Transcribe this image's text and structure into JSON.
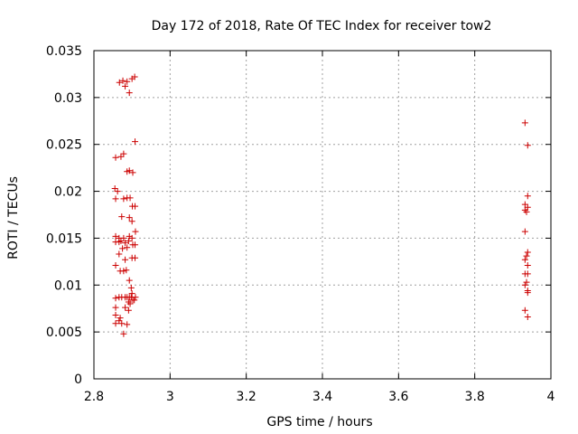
{
  "chart_data": {
    "type": "scatter",
    "title": "Day 172 of 2018, Rate Of TEC Index for receiver tow2",
    "xlabel": "GPS time / hours",
    "ylabel": "ROTI / TECUs",
    "xlim": [
      2.8,
      4.0
    ],
    "ylim": [
      0,
      0.035
    ],
    "x_ticks": [
      2.8,
      3.0,
      3.2,
      3.4,
      3.6,
      3.8,
      4.0
    ],
    "x_tick_labels": [
      "2.8",
      "3",
      "3.2",
      "3.4",
      "3.6",
      "3.8",
      "4"
    ],
    "y_ticks": [
      0,
      0.005,
      0.01,
      0.015,
      0.02,
      0.025,
      0.03,
      0.035
    ],
    "y_tick_labels": [
      "0",
      "0.005",
      "0.01",
      "0.015",
      "0.02",
      "0.025",
      "0.03",
      "0.035"
    ],
    "grid": true,
    "marker": "plus",
    "color": "#cc0000",
    "series": [
      {
        "points": [
          [
            2.867,
            0.0316
          ],
          [
            2.876,
            0.0318
          ],
          [
            2.882,
            0.0312
          ],
          [
            2.887,
            0.0317
          ],
          [
            2.893,
            0.0305
          ],
          [
            2.9,
            0.032
          ],
          [
            2.907,
            0.0322
          ],
          [
            2.908,
            0.0253
          ],
          [
            2.857,
            0.0236
          ],
          [
            2.871,
            0.0237
          ],
          [
            2.878,
            0.024
          ],
          [
            2.887,
            0.0221
          ],
          [
            2.893,
            0.0222
          ],
          [
            2.902,
            0.022
          ],
          [
            2.855,
            0.0203
          ],
          [
            2.862,
            0.02
          ],
          [
            2.857,
            0.0192
          ],
          [
            2.878,
            0.0192
          ],
          [
            2.887,
            0.0193
          ],
          [
            2.895,
            0.0193
          ],
          [
            2.901,
            0.0184
          ],
          [
            2.908,
            0.0184
          ],
          [
            2.873,
            0.0173
          ],
          [
            2.893,
            0.0172
          ],
          [
            2.9,
            0.0168
          ],
          [
            2.909,
            0.0157
          ],
          [
            2.857,
            0.0152
          ],
          [
            2.866,
            0.015
          ],
          [
            2.878,
            0.015
          ],
          [
            2.893,
            0.0152
          ],
          [
            2.9,
            0.015
          ],
          [
            2.857,
            0.0146
          ],
          [
            2.866,
            0.0146
          ],
          [
            2.871,
            0.0147
          ],
          [
            2.882,
            0.0145
          ],
          [
            2.891,
            0.0147
          ],
          [
            2.902,
            0.0143
          ],
          [
            2.908,
            0.0143
          ],
          [
            2.875,
            0.0139
          ],
          [
            2.887,
            0.014
          ],
          [
            2.866,
            0.0133
          ],
          [
            2.882,
            0.0127
          ],
          [
            2.9,
            0.0129
          ],
          [
            2.908,
            0.0129
          ],
          [
            2.857,
            0.0121
          ],
          [
            2.869,
            0.0115
          ],
          [
            2.878,
            0.0115
          ],
          [
            2.885,
            0.0116
          ],
          [
            2.893,
            0.0105
          ],
          [
            2.898,
            0.0097
          ],
          [
            2.9,
            0.0091
          ],
          [
            2.857,
            0.0086
          ],
          [
            2.866,
            0.0087
          ],
          [
            2.873,
            0.0087
          ],
          [
            2.882,
            0.0087
          ],
          [
            2.887,
            0.0087
          ],
          [
            2.893,
            0.0087
          ],
          [
            2.898,
            0.0087
          ],
          [
            2.902,
            0.0084
          ],
          [
            2.906,
            0.0084
          ],
          [
            2.909,
            0.0087
          ],
          [
            2.891,
            0.0082
          ],
          [
            2.895,
            0.008
          ],
          [
            2.857,
            0.0076
          ],
          [
            2.882,
            0.0076
          ],
          [
            2.891,
            0.0073
          ],
          [
            2.857,
            0.0068
          ],
          [
            2.869,
            0.0065
          ],
          [
            2.857,
            0.0059
          ],
          [
            2.866,
            0.0062
          ],
          [
            2.873,
            0.0059
          ],
          [
            2.887,
            0.0058
          ],
          [
            2.878,
            0.0048
          ]
        ]
      },
      {
        "points": [
          [
            3.932,
            0.0273
          ],
          [
            3.939,
            0.0249
          ],
          [
            3.939,
            0.0195
          ],
          [
            3.932,
            0.0186
          ],
          [
            3.939,
            0.0183
          ],
          [
            3.932,
            0.018
          ],
          [
            3.936,
            0.0178
          ],
          [
            3.932,
            0.0157
          ],
          [
            3.939,
            0.0135
          ],
          [
            3.936,
            0.0131
          ],
          [
            3.932,
            0.0127
          ],
          [
            3.939,
            0.0121
          ],
          [
            3.932,
            0.0112
          ],
          [
            3.939,
            0.0112
          ],
          [
            3.936,
            0.0103
          ],
          [
            3.932,
            0.01
          ],
          [
            3.939,
            0.0094
          ],
          [
            3.939,
            0.0092
          ],
          [
            3.932,
            0.0073
          ],
          [
            3.939,
            0.0066
          ]
        ]
      }
    ]
  }
}
